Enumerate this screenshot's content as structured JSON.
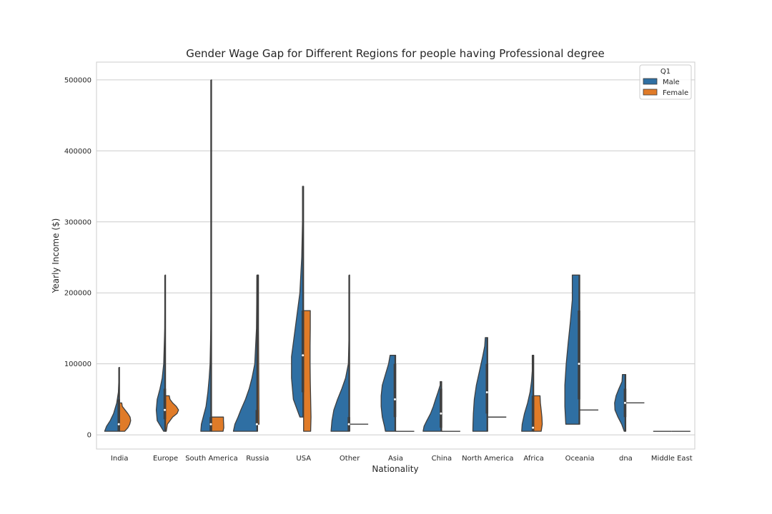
{
  "chart_data": {
    "type": "violin",
    "title": "Gender Wage Gap for Different Regions for people having Professional degree",
    "xlabel": "Nationality",
    "ylabel": "Yearly Income ($)",
    "ylim": [
      -20000,
      525000
    ],
    "yticks": [
      0,
      100000,
      200000,
      300000,
      400000,
      500000
    ],
    "grid": true,
    "legend": {
      "title": "Q1",
      "placement": "top-right"
    },
    "categories": [
      "India",
      "Europe",
      "South America",
      "Russia",
      "USA",
      "Other",
      "Asia",
      "China",
      "North America",
      "Africa",
      "Oceania",
      "dna",
      "Middle East"
    ],
    "series": [
      {
        "name": "Male",
        "color": "#2f6fa3",
        "violins": [
          {
            "min": 5000,
            "max": 95000,
            "median": 15000,
            "q1": 5000,
            "q3": 50000,
            "profile": [
              [
                5000,
                0.8
              ],
              [
                12000,
                0.7
              ],
              [
                20000,
                0.5
              ],
              [
                30000,
                0.32
              ],
              [
                45000,
                0.15
              ],
              [
                60000,
                0.06
              ],
              [
                80000,
                0.03
              ],
              [
                95000,
                0.02
              ]
            ]
          },
          {
            "min": 5000,
            "max": 225000,
            "median": 35000,
            "q1": 22000,
            "q3": 65000,
            "profile": [
              [
                5000,
                0.1
              ],
              [
                20000,
                0.45
              ],
              [
                35000,
                0.5
              ],
              [
                50000,
                0.45
              ],
              [
                65000,
                0.3
              ],
              [
                80000,
                0.18
              ],
              [
                100000,
                0.1
              ],
              [
                150000,
                0.04
              ],
              [
                200000,
                0.03
              ],
              [
                225000,
                0.02
              ]
            ]
          },
          {
            "min": 5000,
            "max": 500000,
            "median": 15000,
            "q1": 5000,
            "q3": 25000,
            "profile": [
              [
                5000,
                0.58
              ],
              [
                15000,
                0.55
              ],
              [
                25000,
                0.45
              ],
              [
                40000,
                0.3
              ],
              [
                60000,
                0.2
              ],
              [
                80000,
                0.13
              ],
              [
                100000,
                0.08
              ],
              [
                150000,
                0.04
              ],
              [
                200000,
                0.02
              ],
              [
                300000,
                0.015
              ],
              [
                400000,
                0.01
              ],
              [
                500000,
                0.01
              ]
            ]
          },
          {
            "min": 5000,
            "max": 225000,
            "median": 15000,
            "q1": 15000,
            "q3": 35000,
            "profile": [
              [
                5000,
                1.3
              ],
              [
                15000,
                1.22
              ],
              [
                25000,
                1.05
              ],
              [
                35000,
                0.9
              ],
              [
                50000,
                0.65
              ],
              [
                65000,
                0.45
              ],
              [
                80000,
                0.3
              ],
              [
                100000,
                0.15
              ],
              [
                150000,
                0.06
              ],
              [
                200000,
                0.04
              ],
              [
                225000,
                0.03
              ]
            ]
          },
          {
            "min": 25000,
            "max": 350000,
            "median": 112000,
            "q1": 60000,
            "q3": 175000,
            "profile": [
              [
                25000,
                0.2
              ],
              [
                50000,
                0.55
              ],
              [
                80000,
                0.65
              ],
              [
                110000,
                0.65
              ],
              [
                150000,
                0.45
              ],
              [
                200000,
                0.2
              ],
              [
                250000,
                0.1
              ],
              [
                300000,
                0.06
              ],
              [
                350000,
                0.06
              ]
            ]
          },
          {
            "min": 5000,
            "max": 225000,
            "median": 15000,
            "q1": 5000,
            "q3": 25000,
            "profile": [
              [
                5000,
                1.0
              ],
              [
                20000,
                0.95
              ],
              [
                35000,
                0.85
              ],
              [
                50000,
                0.65
              ],
              [
                65000,
                0.42
              ],
              [
                80000,
                0.22
              ],
              [
                100000,
                0.07
              ],
              [
                150000,
                0.02
              ],
              [
                200000,
                0.02
              ],
              [
                225000,
                0.02
              ]
            ]
          },
          {
            "min": 5000,
            "max": 112000,
            "median": 50000,
            "q1": 25000,
            "q3": 100000,
            "profile": [
              [
                5000,
                0.55
              ],
              [
                12000,
                0.6
              ],
              [
                25000,
                0.72
              ],
              [
                40000,
                0.78
              ],
              [
                55000,
                0.78
              ],
              [
                70000,
                0.72
              ],
              [
                85000,
                0.55
              ],
              [
                100000,
                0.38
              ],
              [
                112000,
                0.3
              ]
            ]
          },
          {
            "min": 5000,
            "max": 75000,
            "median": 30000,
            "q1": 10000,
            "q3": 65000,
            "profile": [
              [
                5000,
                1.0
              ],
              [
                12000,
                0.95
              ],
              [
                20000,
                0.8
              ],
              [
                30000,
                0.6
              ],
              [
                40000,
                0.45
              ],
              [
                50000,
                0.33
              ],
              [
                60000,
                0.2
              ],
              [
                70000,
                0.08
              ],
              [
                75000,
                0.08
              ]
            ]
          },
          {
            "min": 5000,
            "max": 137000,
            "median": 60000,
            "q1": 30000,
            "q3": 100000,
            "profile": [
              [
                5000,
                0.8
              ],
              [
                15000,
                0.79
              ],
              [
                30000,
                0.77
              ],
              [
                50000,
                0.72
              ],
              [
                70000,
                0.61
              ],
              [
                90000,
                0.44
              ],
              [
                110000,
                0.27
              ],
              [
                125000,
                0.16
              ],
              [
                137000,
                0.13
              ]
            ]
          },
          {
            "min": 5000,
            "max": 112000,
            "median": 10000,
            "q1": 5000,
            "q3": 55000,
            "profile": [
              [
                5000,
                0.65
              ],
              [
                15000,
                0.62
              ],
              [
                30000,
                0.5
              ],
              [
                45000,
                0.33
              ],
              [
                60000,
                0.2
              ],
              [
                75000,
                0.12
              ],
              [
                90000,
                0.08
              ],
              [
                105000,
                0.08
              ],
              [
                112000,
                0.08
              ]
            ]
          },
          {
            "min": 15000,
            "max": 225000,
            "median": 100000,
            "q1": 50000,
            "q3": 175000,
            "profile": [
              [
                15000,
                0.75
              ],
              [
                40000,
                0.8
              ],
              [
                70000,
                0.8
              ],
              [
                100000,
                0.73
              ],
              [
                130000,
                0.62
              ],
              [
                160000,
                0.5
              ],
              [
                190000,
                0.4
              ],
              [
                210000,
                0.4
              ],
              [
                225000,
                0.4
              ]
            ]
          },
          {
            "min": 5000,
            "max": 85000,
            "median": 45000,
            "q1": 25000,
            "q3": 65000,
            "profile": [
              [
                5000,
                0.08
              ],
              [
                15000,
                0.22
              ],
              [
                25000,
                0.42
              ],
              [
                35000,
                0.58
              ],
              [
                45000,
                0.6
              ],
              [
                55000,
                0.52
              ],
              [
                65000,
                0.37
              ],
              [
                75000,
                0.2
              ],
              [
                85000,
                0.18
              ]
            ]
          },
          {
            "min": 5000,
            "max": 5000,
            "median": 5000
          }
        ]
      },
      {
        "name": "Female",
        "color": "#e07b28",
        "violins": [
          {
            "min": 5000,
            "max": 45000,
            "median": 15000,
            "profile": [
              [
                5000,
                0.28
              ],
              [
                10000,
                0.45
              ],
              [
                15000,
                0.55
              ],
              [
                20000,
                0.6
              ],
              [
                25000,
                0.57
              ],
              [
                30000,
                0.45
              ],
              [
                35000,
                0.3
              ],
              [
                40000,
                0.15
              ],
              [
                45000,
                0.12
              ]
            ]
          },
          {
            "min": 5000,
            "max": 55000,
            "median": 35000,
            "profile": [
              [
                5000,
                0.04
              ],
              [
                15000,
                0.1
              ],
              [
                25000,
                0.38
              ],
              [
                30000,
                0.62
              ],
              [
                35000,
                0.7
              ],
              [
                40000,
                0.58
              ],
              [
                45000,
                0.38
              ],
              [
                50000,
                0.24
              ],
              [
                55000,
                0.2
              ]
            ]
          },
          {
            "min": 5000,
            "max": 25000,
            "median": 15000,
            "profile": [
              [
                5000,
                0.62
              ],
              [
                8000,
                0.64
              ],
              [
                10000,
                0.66
              ],
              [
                15000,
                0.65
              ],
              [
                20000,
                0.64
              ],
              [
                25000,
                0.64
              ]
            ]
          },
          {
            "min": 15000,
            "max": 225000,
            "median": 15000,
            "profile": [
              [
                15000,
                0.08
              ],
              [
                50000,
                0.07
              ],
              [
                100000,
                0.06
              ],
              [
                150000,
                0.05
              ],
              [
                200000,
                0.05
              ],
              [
                225000,
                0.05
              ]
            ]
          },
          {
            "min": 5000,
            "max": 175000,
            "median": 112000,
            "profile": [
              [
                5000,
                0.38
              ],
              [
                25000,
                0.4
              ],
              [
                50000,
                0.38
              ],
              [
                75000,
                0.36
              ],
              [
                100000,
                0.35
              ],
              [
                125000,
                0.35
              ],
              [
                150000,
                0.36
              ],
              [
                175000,
                0.36
              ]
            ]
          },
          {
            "min": 15000,
            "max": 15000,
            "median": 15000
          },
          {
            "min": 5000,
            "max": 5000,
            "median": 5000
          },
          {
            "min": 5000,
            "max": 5000,
            "median": 5000
          },
          {
            "min": 25000,
            "max": 25000,
            "median": 25000
          },
          {
            "min": 5000,
            "max": 55000,
            "median": 10000,
            "profile": [
              [
                5000,
                0.4
              ],
              [
                15000,
                0.46
              ],
              [
                25000,
                0.44
              ],
              [
                35000,
                0.4
              ],
              [
                45000,
                0.36
              ],
              [
                55000,
                0.34
              ]
            ]
          },
          {
            "min": 35000,
            "max": 35000,
            "median": 35000
          },
          {
            "min": 45000,
            "max": 45000,
            "median": 45000
          },
          {
            "min": 5000,
            "max": 5000,
            "median": 5000
          }
        ]
      }
    ]
  }
}
